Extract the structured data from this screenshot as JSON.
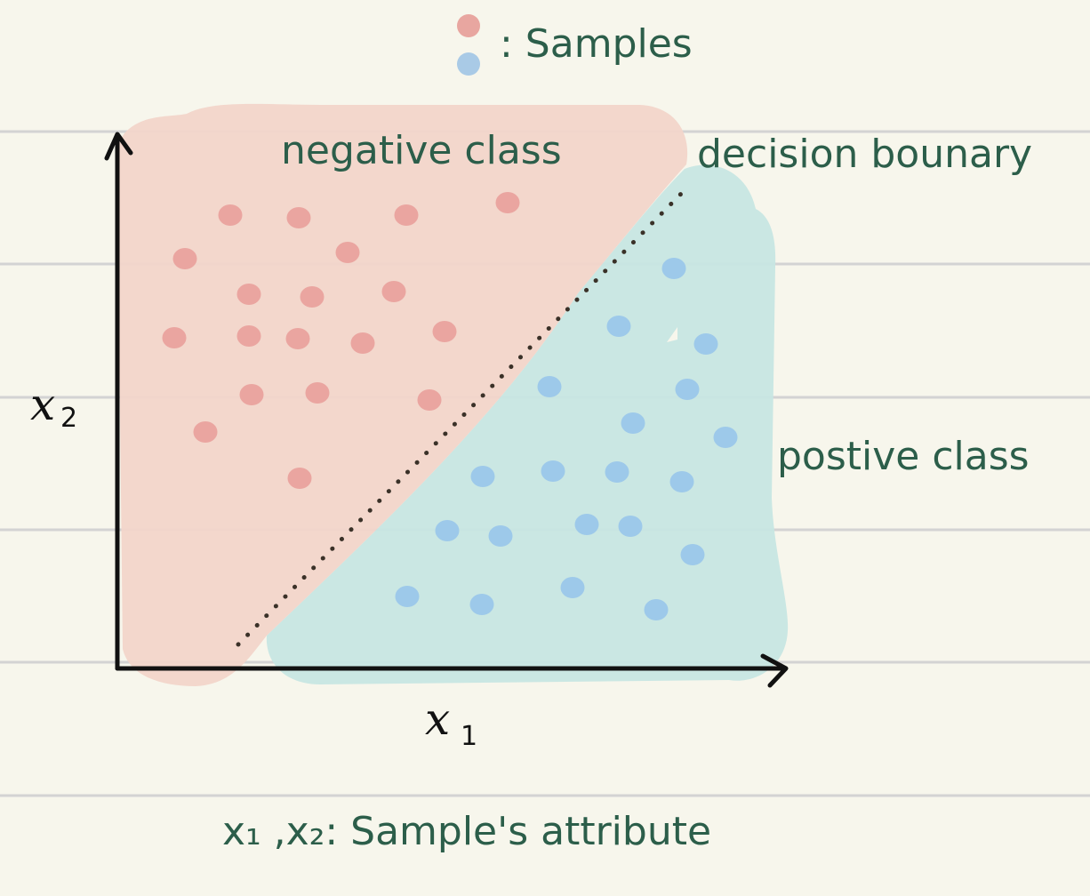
{
  "legend": {
    "label": ": Samples",
    "swatches": [
      {
        "name": "negative-sample",
        "color": "#e8a6a0"
      },
      {
        "name": "positive-sample",
        "color": "#a9cae6"
      }
    ]
  },
  "labels": {
    "negative_class": "negative class",
    "positive_class": "postive class",
    "decision_boundary": "decision bounary",
    "x_axis": "x",
    "x_axis_sub": "1",
    "y_axis": "x",
    "y_axis_sub": "2",
    "caption": "x₁ ,x₂: Sample's attribute"
  },
  "colors": {
    "background": "#f7f6ec",
    "ruled_line": "#d3d3d3",
    "negative_region": "#f2d5ca",
    "positive_region": "#c7e6e3",
    "negative_point": "#eaa5a0",
    "positive_point": "#9dc9ea",
    "text": "#2c5e4a",
    "axis": "#111111",
    "boundary": "#3a3128"
  }
}
